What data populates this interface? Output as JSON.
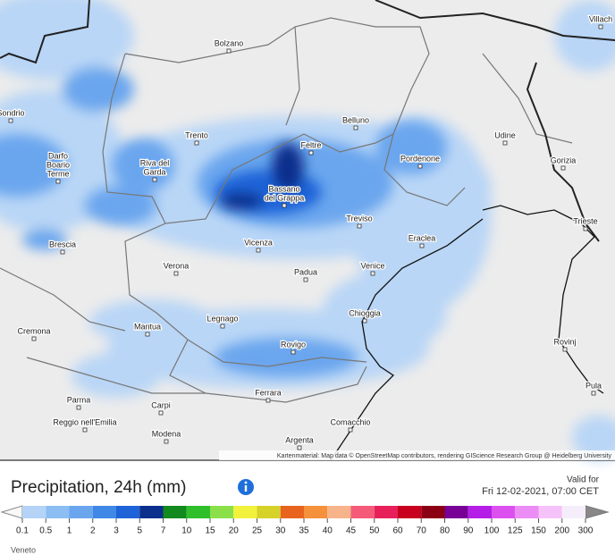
{
  "map": {
    "cities": [
      "Bolzano",
      "Belluno",
      "Udine",
      "Trento",
      "Feltre",
      "Pordenone",
      "Gorizia",
      "Darfo",
      "Boario",
      "Terme",
      "Riva del",
      "Garda",
      "Bassano",
      "del Grappa",
      "Treviso",
      "Trieste",
      "Brescia",
      "Vicenza",
      "Eraclea",
      "Verona",
      "Padua",
      "Venice",
      "Chioggia",
      "Legnago",
      "Mantua",
      "Cremona",
      "Rovigo",
      "Rovinj",
      "Parma",
      "Carpi",
      "Ferrara",
      "Pula",
      "Reggio nell'Emilia",
      "Comacchio",
      "Modena",
      "Argenta",
      "Sondrio",
      "Villach"
    ],
    "attribution": "Kartenmaterial: Map data © OpenStreetMap contributors, rendering GIScience Research Group @ Heidelberg University"
  },
  "legend": {
    "title": "Precipitation, 24h (mm)",
    "valid_label": "Valid for",
    "valid_time": "Fri 12-02-2021, 07:00 CET",
    "ticks": [
      "0.1",
      "0.5",
      "1",
      "2",
      "3",
      "5",
      "7",
      "10",
      "15",
      "20",
      "25",
      "30",
      "35",
      "40",
      "45",
      "50",
      "60",
      "70",
      "80",
      "90",
      "100",
      "125",
      "150",
      "200",
      "300"
    ],
    "colors": [
      "#b5d3f6",
      "#8cbdf3",
      "#6aa6ee",
      "#3f88e6",
      "#1e63d8",
      "#0a2f8c",
      "#128a1e",
      "#2fbf2a",
      "#8be04a",
      "#f2f23c",
      "#d6d22a",
      "#e8641e",
      "#f5913a",
      "#f7b48a",
      "#f55a78",
      "#e8205a",
      "#c8001e",
      "#8c0014",
      "#780096",
      "#b41ee6",
      "#dc50f0",
      "#ec8cf5",
      "#f5c3fa",
      "#f5eefa"
    ],
    "region": "Veneto"
  }
}
